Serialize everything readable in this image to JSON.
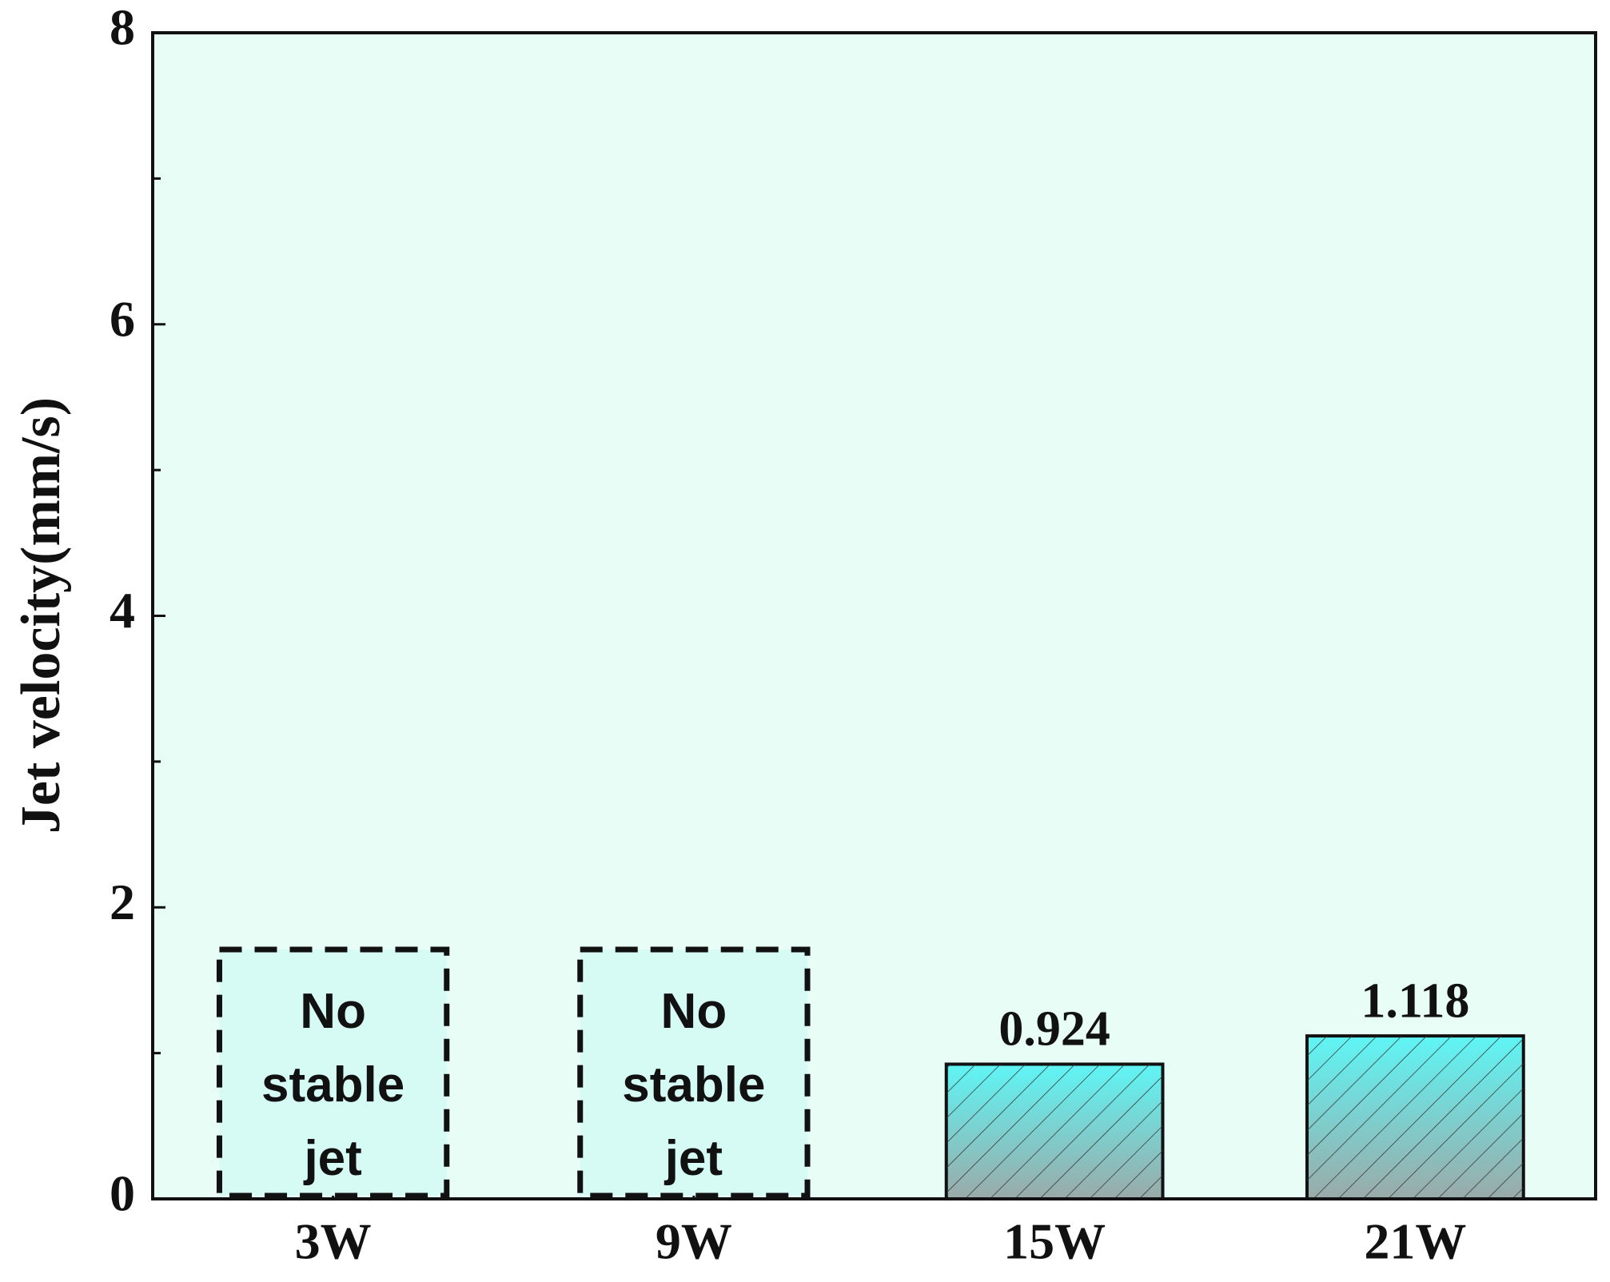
{
  "chart_data": {
    "type": "bar",
    "y_label": "Jet velocity(mm/s)",
    "categories": [
      "3W",
      "9W",
      "15W",
      "21W"
    ],
    "values": [
      null,
      null,
      0.924,
      1.118
    ],
    "annotations": [
      "No stable jet",
      "No stable jet",
      null,
      null
    ],
    "ylim": [
      0,
      8
    ],
    "yticks": [
      0,
      2,
      4,
      6,
      8
    ],
    "minor_yticks": [
      1,
      3,
      5,
      7
    ],
    "color": "#5ff5f5",
    "background": "#e8fdf5",
    "grid": false
  }
}
